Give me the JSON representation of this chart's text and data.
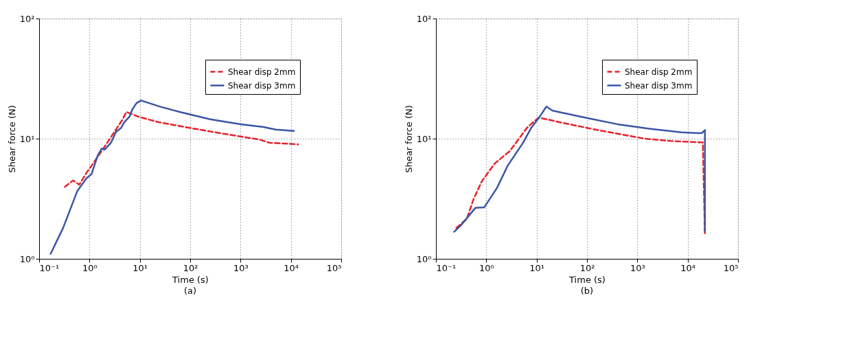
{
  "chart_data": [
    {
      "type": "line",
      "xlabel": "Time (s)",
      "ylabel": "Shear force (N)",
      "annotations": [
        "(a)"
      ],
      "log": "xy",
      "grid": true,
      "legend": "top right",
      "xlim": [
        0.1,
        100000
      ],
      "ylim": [
        1,
        100
      ],
      "xticks": [
        {
          "value": 0.1,
          "label": "10⁻¹"
        },
        {
          "value": 1,
          "label": "10⁰"
        },
        {
          "value": 10,
          "label": "10¹"
        },
        {
          "value": 100,
          "label": "10²"
        },
        {
          "value": 1000,
          "label": "10³"
        },
        {
          "value": 10000,
          "label": "10⁴"
        },
        {
          "value": 100000,
          "label": "10⁵"
        }
      ],
      "yticks": [
        {
          "value": 1,
          "label": "10⁰"
        },
        {
          "value": 10,
          "label": "10¹"
        },
        {
          "value": 100,
          "label": "10²"
        }
      ],
      "series": [
        {
          "name": "Shear disp 2mm",
          "color": "#e8202a",
          "line_style": "dashed",
          "x": [
            0.325,
            0.47,
            0.625,
            0.87,
            1.32,
            2.11,
            3.22,
            4.47,
            5.4,
            9.5,
            24,
            98,
            400,
            2370,
            3770,
            14000
          ],
          "values": [
            3.97,
            4.49,
            4.14,
            5.19,
            6.65,
            8.87,
            11.6,
            14.3,
            16.7,
            15.2,
            13.7,
            12.3,
            11.1,
            9.84,
            9.25,
            8.97
          ]
        },
        {
          "name": "Shear disp 3mm",
          "color": "#3a55a4",
          "line_style": "solid",
          "x": [
            0.169,
            0.3,
            0.57,
            0.87,
            1.1,
            1.45,
            1.75,
            2.01,
            2.67,
            3.37,
            4.26,
            4.9,
            6.2,
            7.1,
            8.6,
            10.6,
            24,
            61.5,
            250,
            1000,
            2850,
            5000,
            11600
          ],
          "values": [
            1.1,
            1.81,
            3.65,
            4.68,
            5.08,
            7.2,
            8.27,
            8.1,
            9.25,
            11.4,
            12.3,
            13.7,
            15.2,
            17.5,
            19.8,
            20.8,
            18.6,
            16.7,
            14.5,
            13.2,
            12.5,
            11.9,
            11.6
          ]
        }
      ]
    },
    {
      "type": "line",
      "xlabel": "Time (s)",
      "ylabel": "Shear force (N)",
      "annotations": [
        "(b)"
      ],
      "log": "xy",
      "grid": true,
      "legend": "top right",
      "xlim": [
        0.1,
        100000
      ],
      "ylim": [
        1,
        100
      ],
      "xticks": [
        {
          "value": 0.1,
          "label": "10⁻¹"
        },
        {
          "value": 1,
          "label": "10⁰"
        },
        {
          "value": 10,
          "label": "10¹"
        },
        {
          "value": 100,
          "label": "10²"
        },
        {
          "value": 1000,
          "label": "10³"
        },
        {
          "value": 10000,
          "label": "10⁴"
        },
        {
          "value": 100000,
          "label": "10⁵"
        }
      ],
      "yticks": [
        {
          "value": 1,
          "label": "10⁰"
        },
        {
          "value": 10,
          "label": "10¹"
        },
        {
          "value": 100,
          "label": "10²"
        }
      ],
      "series": [
        {
          "name": "Shear disp 2mm",
          "color": "#e8202a",
          "line_style": "dashed",
          "x": [
            0.254,
            0.41,
            0.56,
            0.82,
            1.49,
            2.94,
            6.5,
            11,
            34,
            148,
            1420,
            4600,
            20000,
            22000
          ],
          "values": [
            1.81,
            2.15,
            3.15,
            4.44,
            6.25,
            7.9,
            12.4,
            15,
            13.5,
            11.9,
            10,
            9.57,
            9.3,
            1.6
          ]
        },
        {
          "name": "Shear disp 3mm",
          "color": "#3a55a4",
          "line_style": "solid",
          "x": [
            0.23,
            0.31,
            0.61,
            0.91,
            1.64,
            2.67,
            5.3,
            7.9,
            11.6,
            15.6,
            20.9,
            91,
            400,
            1730,
            7500,
            19000,
            22000,
            22000
          ],
          "values": [
            1.68,
            1.89,
            2.66,
            2.68,
            3.91,
            5.98,
            9.16,
            12.4,
            15.3,
            18.5,
            17.1,
            15.0,
            13.2,
            12.1,
            11.3,
            11.1,
            11.8,
            1.7
          ]
        }
      ]
    }
  ]
}
